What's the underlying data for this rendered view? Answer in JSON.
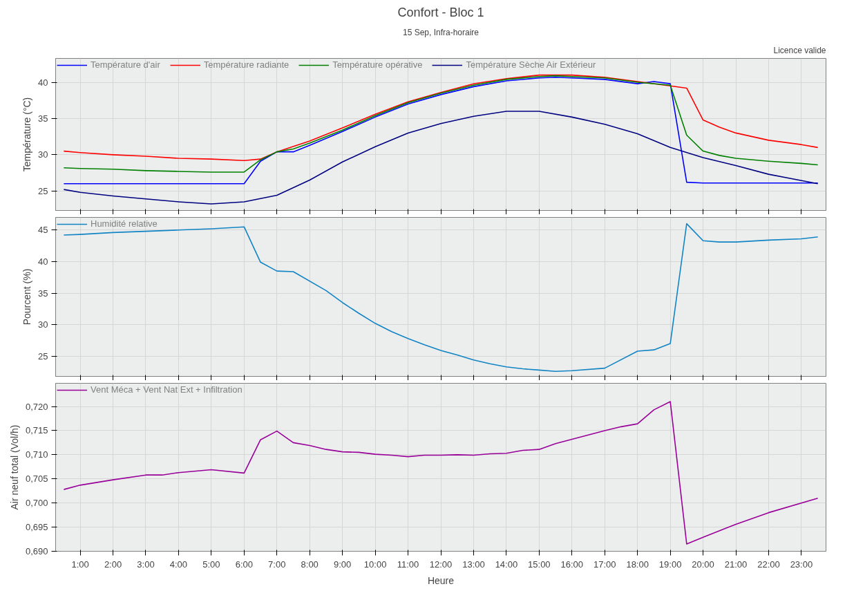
{
  "chart_data": [
    {
      "type": "line",
      "title": "Confort - Bloc 1",
      "subtitle": "15 Sep, Infra-horaire",
      "annotations": [
        "Licence valide"
      ],
      "ylabel": "Température (°C)",
      "xlim": [
        0.25,
        23.75
      ],
      "xticks": [
        {
          "value": 1,
          "label": null
        },
        {
          "value": 2,
          "label": null
        },
        {
          "value": 3,
          "label": null
        },
        {
          "value": 4,
          "label": null
        },
        {
          "value": 5,
          "label": null
        },
        {
          "value": 6,
          "label": null
        },
        {
          "value": 7,
          "label": null
        },
        {
          "value": 8,
          "label": null
        },
        {
          "value": 9,
          "label": null
        },
        {
          "value": 10,
          "label": null
        },
        {
          "value": 11,
          "label": null
        },
        {
          "value": 12,
          "label": null
        },
        {
          "value": 13,
          "label": null
        },
        {
          "value": 14,
          "label": null
        },
        {
          "value": 15,
          "label": null
        },
        {
          "value": 16,
          "label": null
        },
        {
          "value": 17,
          "label": null
        },
        {
          "value": 18,
          "label": null
        },
        {
          "value": 19,
          "label": null
        },
        {
          "value": 20,
          "label": null
        },
        {
          "value": 21,
          "label": null
        },
        {
          "value": 22,
          "label": null
        },
        {
          "value": 23,
          "label": null
        }
      ],
      "ylim": [
        22.3,
        43.3
      ],
      "yticks": [
        25,
        30,
        35,
        40
      ],
      "grid": true,
      "legend": "top left",
      "tick_labels": "y",
      "line_style": "solid",
      "marker": "none",
      "series": [
        {
          "name": "Température d'air",
          "color": "#0000ff",
          "x": [
            0.5,
            6,
            6.5,
            7,
            7.5,
            8,
            9,
            10,
            11,
            12,
            13,
            14,
            15,
            15.5,
            16,
            17,
            18,
            18.5,
            19,
            19.5,
            20,
            23.5
          ],
          "values": [
            26.0,
            26.0,
            29.1,
            30.4,
            30.4,
            31.3,
            33.2,
            35.2,
            37.0,
            38.3,
            39.4,
            40.2,
            40.6,
            40.7,
            40.6,
            40.4,
            39.8,
            40.1,
            39.8,
            26.2,
            26.1,
            26.1
          ]
        },
        {
          "name": "Température radiante",
          "color": "#ff0000",
          "x": [
            0.5,
            1,
            2,
            3,
            4,
            5,
            6,
            6.5,
            7,
            8,
            9,
            10,
            11,
            12,
            13,
            14,
            15,
            15.5,
            16,
            17,
            18,
            19,
            19.5,
            20,
            20.5,
            21,
            22,
            23,
            23.5
          ],
          "values": [
            30.5,
            30.3,
            30.0,
            29.8,
            29.5,
            29.4,
            29.2,
            29.4,
            30.4,
            31.9,
            33.7,
            35.6,
            37.3,
            38.6,
            39.8,
            40.5,
            41.0,
            41.0,
            41.0,
            40.7,
            40.1,
            39.5,
            39.2,
            34.8,
            33.8,
            33.0,
            32.0,
            31.4,
            31.0
          ]
        },
        {
          "name": "Température opérative",
          "color": "#008000",
          "x": [
            0.5,
            1,
            2,
            3,
            4,
            5,
            6,
            6.5,
            7,
            7.5,
            8,
            9,
            10,
            11,
            12,
            13,
            14,
            15,
            15.5,
            16,
            17,
            18,
            19,
            19.5,
            20,
            20.5,
            21,
            22,
            23,
            23.5
          ],
          "values": [
            28.2,
            28.1,
            28.0,
            27.8,
            27.7,
            27.6,
            27.6,
            29.3,
            30.4,
            30.8,
            31.6,
            33.4,
            35.4,
            37.2,
            38.5,
            39.6,
            40.4,
            40.8,
            40.9,
            40.8,
            40.6,
            40.0,
            39.6,
            32.7,
            30.5,
            29.9,
            29.5,
            29.1,
            28.8,
            28.6
          ]
        },
        {
          "name": "Température Sèche Air Extérieur",
          "color": "#000080",
          "x": [
            0.5,
            1,
            2,
            3,
            4,
            5,
            6,
            7,
            8,
            9,
            10,
            11,
            12,
            13,
            14,
            15,
            16,
            17,
            18,
            19,
            20,
            21,
            22,
            23.5
          ],
          "values": [
            25.2,
            24.8,
            24.3,
            23.9,
            23.5,
            23.2,
            23.5,
            24.4,
            26.5,
            29.0,
            31.1,
            33.0,
            34.3,
            35.3,
            36.0,
            36.0,
            35.2,
            34.2,
            32.9,
            31.0,
            29.6,
            28.5,
            27.3,
            26.0
          ]
        }
      ]
    },
    {
      "type": "line",
      "ylabel": "Pourcent (%)",
      "xlim": [
        0.25,
        23.75
      ],
      "xticks": [
        {
          "value": 1,
          "label": null
        },
        {
          "value": 2,
          "label": null
        },
        {
          "value": 3,
          "label": null
        },
        {
          "value": 4,
          "label": null
        },
        {
          "value": 5,
          "label": null
        },
        {
          "value": 6,
          "label": null
        },
        {
          "value": 7,
          "label": null
        },
        {
          "value": 8,
          "label": null
        },
        {
          "value": 9,
          "label": null
        },
        {
          "value": 10,
          "label": null
        },
        {
          "value": 11,
          "label": null
        },
        {
          "value": 12,
          "label": null
        },
        {
          "value": 13,
          "label": null
        },
        {
          "value": 14,
          "label": null
        },
        {
          "value": 15,
          "label": null
        },
        {
          "value": 16,
          "label": null
        },
        {
          "value": 17,
          "label": null
        },
        {
          "value": 18,
          "label": null
        },
        {
          "value": 19,
          "label": null
        },
        {
          "value": 20,
          "label": null
        },
        {
          "value": 21,
          "label": null
        },
        {
          "value": 22,
          "label": null
        },
        {
          "value": 23,
          "label": null
        }
      ],
      "ylim": [
        21.8,
        47
      ],
      "yticks": [
        25,
        30,
        35,
        40,
        45
      ],
      "grid": true,
      "legend": "top left",
      "tick_labels": "y",
      "line_style": "solid",
      "marker": "none",
      "series": [
        {
          "name": "Humidité relative",
          "color": "#1184c4",
          "x": [
            0.5,
            1,
            2,
            3,
            4,
            5,
            6,
            6.5,
            7,
            7.5,
            8.5,
            9,
            9.5,
            10,
            10.5,
            11,
            11.5,
            12,
            12.5,
            13,
            13.5,
            14,
            14.5,
            15,
            15.5,
            16,
            17,
            18,
            18.5,
            19,
            19.5,
            20,
            20.5,
            21,
            22,
            23,
            23.5
          ],
          "values": [
            44.2,
            44.3,
            44.6,
            44.8,
            45.0,
            45.2,
            45.5,
            39.9,
            38.5,
            38.4,
            35.4,
            33.5,
            31.8,
            30.2,
            28.9,
            27.8,
            26.8,
            25.9,
            25.2,
            24.4,
            23.8,
            23.3,
            23.0,
            22.8,
            22.6,
            22.7,
            23.1,
            25.8,
            26.0,
            27.0,
            46.0,
            43.3,
            43.1,
            43.1,
            43.4,
            43.6,
            43.9
          ]
        }
      ]
    },
    {
      "type": "line",
      "ylabel": "Air neuf total (Vol/h)",
      "xlabel": "Heure",
      "xlim": [
        0.25,
        23.75
      ],
      "xticks": [
        {
          "value": 1,
          "label": "1:00"
        },
        {
          "value": 2,
          "label": "2:00"
        },
        {
          "value": 3,
          "label": "3:00"
        },
        {
          "value": 4,
          "label": "4:00"
        },
        {
          "value": 5,
          "label": "5:00"
        },
        {
          "value": 6,
          "label": "6:00"
        },
        {
          "value": 7,
          "label": "7:00"
        },
        {
          "value": 8,
          "label": "8:00"
        },
        {
          "value": 9,
          "label": "9:00"
        },
        {
          "value": 10,
          "label": "10:00"
        },
        {
          "value": 11,
          "label": "11:00"
        },
        {
          "value": 12,
          "label": "12:00"
        },
        {
          "value": 13,
          "label": "13:00"
        },
        {
          "value": 14,
          "label": "14:00"
        },
        {
          "value": 15,
          "label": "15:00"
        },
        {
          "value": 16,
          "label": "16:00"
        },
        {
          "value": 17,
          "label": "17:00"
        },
        {
          "value": 18,
          "label": "18:00"
        },
        {
          "value": 19,
          "label": "19:00"
        },
        {
          "value": 20,
          "label": "20:00"
        },
        {
          "value": 21,
          "label": "21:00"
        },
        {
          "value": 22,
          "label": "22:00"
        },
        {
          "value": 23,
          "label": "23:00"
        }
      ],
      "ylim": [
        0.69,
        0.7248
      ],
      "yticks": [
        {
          "value": 0.69,
          "label": "0,690"
        },
        {
          "value": 0.695,
          "label": "0,695"
        },
        {
          "value": 0.7,
          "label": "0,700"
        },
        {
          "value": 0.705,
          "label": "0,705"
        },
        {
          "value": 0.71,
          "label": "0,710"
        },
        {
          "value": 0.715,
          "label": "0,715"
        },
        {
          "value": 0.72,
          "label": "0,720"
        }
      ],
      "grid": true,
      "legend": "top left",
      "line_style": "solid",
      "marker": "none",
      "series": [
        {
          "name": "Vent Méca + Vent Nat Ext + Infiltration",
          "color": "#990099",
          "x": [
            0.5,
            1,
            2,
            3,
            3.5,
            4,
            5,
            6,
            6.5,
            7,
            7.5,
            8,
            8.5,
            9,
            9.5,
            10,
            10.5,
            11,
            11.5,
            12,
            12.5,
            13,
            13.5,
            14,
            14.5,
            15,
            15.5,
            17,
            17.5,
            18,
            18.5,
            19,
            19.5,
            20,
            21,
            22,
            23.5
          ],
          "values": [
            0.7028,
            0.7037,
            0.7048,
            0.7058,
            0.7058,
            0.7063,
            0.7069,
            0.7062,
            0.7131,
            0.7149,
            0.7125,
            0.7119,
            0.7111,
            0.7106,
            0.7105,
            0.7101,
            0.7099,
            0.7096,
            0.7099,
            0.7099,
            0.71,
            0.7099,
            0.7102,
            0.7103,
            0.7109,
            0.7111,
            0.7123,
            0.715,
            0.7158,
            0.7164,
            0.7193,
            0.721,
            0.6915,
            0.6929,
            0.6956,
            0.698,
            0.701
          ]
        }
      ]
    }
  ]
}
